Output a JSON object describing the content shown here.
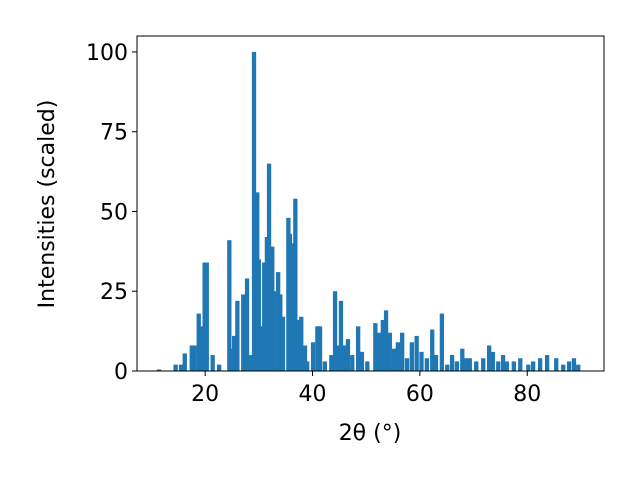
{
  "chart_data": {
    "type": "bar",
    "xlabel": "2θ (°)",
    "ylabel": "Intensities (scaled)",
    "x": [
      11.4,
      14.5,
      15.5,
      16.2,
      17.5,
      18.0,
      18.8,
      19.5,
      19.9,
      20.3,
      21.4,
      22.6,
      24.5,
      25.2,
      25.4,
      26.0,
      27.1,
      27.8,
      28.4,
      29.1,
      29.7,
      30.0,
      30.4,
      31.0,
      31.5,
      31.9,
      32.5,
      32.8,
      33.6,
      34.0,
      34.5,
      35.5,
      35.8,
      36.2,
      36.8,
      37.3,
      37.9,
      38.6,
      39.0,
      40.1,
      40.9,
      41.4,
      42.3,
      43.5,
      44.2,
      44.8,
      45.3,
      45.9,
      46.6,
      47.4,
      48.5,
      49.2,
      50.2,
      51.7,
      52.4,
      53.1,
      53.7,
      54.4,
      55.2,
      55.9,
      56.7,
      57.6,
      58.5,
      59.4,
      60.3,
      61.3,
      62.3,
      63.0,
      64.1,
      65.1,
      66.0,
      66.9,
      67.9,
      68.6,
      69.3,
      70.5,
      71.8,
      72.9,
      73.6,
      74.6,
      75.5,
      76.2,
      77.5,
      78.7,
      80.2,
      81.1,
      82.4,
      83.7,
      85.4,
      86.7,
      87.8,
      88.7,
      89.5
    ],
    "values": [
      0.5,
      2,
      2,
      5.5,
      8,
      8,
      18,
      14,
      34,
      34,
      5,
      2,
      41,
      7,
      11,
      22,
      24,
      29,
      5,
      100,
      56,
      35,
      14,
      34,
      42,
      65,
      39,
      25,
      31,
      24,
      17,
      48,
      43,
      40,
      54,
      16,
      17,
      8,
      3,
      9,
      14,
      14,
      3,
      5,
      25,
      8,
      22,
      8,
      10,
      5,
      14,
      6,
      3,
      15,
      12,
      16,
      19,
      12,
      7,
      9,
      12,
      4,
      9,
      11,
      6,
      4,
      13,
      5,
      18,
      2,
      5,
      3,
      7,
      4,
      4,
      3,
      4,
      8,
      6,
      3,
      5,
      3,
      3,
      4,
      2,
      3,
      4,
      5,
      4,
      2,
      3,
      4,
      2
    ],
    "color": "#1f77b4",
    "xlim": [
      7.3,
      94.3
    ],
    "ylim": [
      0,
      105
    ],
    "xticks": [
      20,
      40,
      60,
      80
    ],
    "yticks": [
      0,
      25,
      50,
      75,
      100
    ]
  }
}
